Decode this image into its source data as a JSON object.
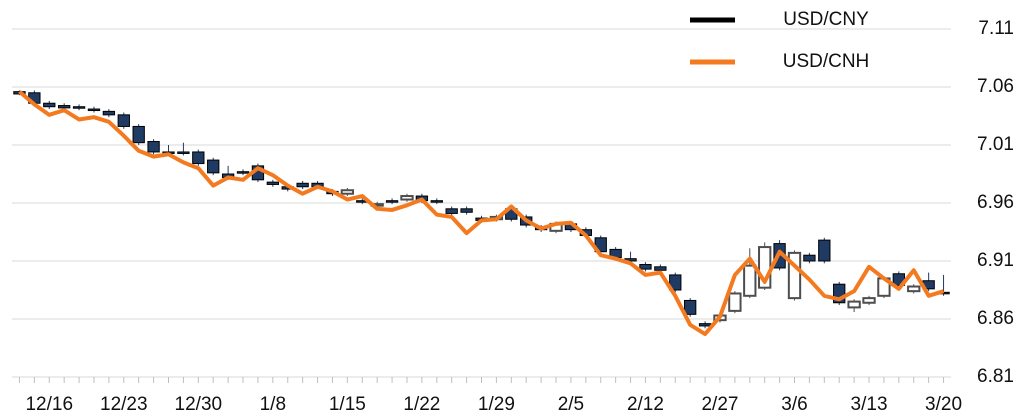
{
  "chart_data": {
    "type": "candlestick",
    "categories": [
      null,
      null,
      "12/16",
      null,
      null,
      null,
      null,
      "12/23",
      null,
      null,
      null,
      null,
      "12/30",
      null,
      null,
      null,
      null,
      "1/8",
      null,
      null,
      null,
      null,
      "1/15",
      null,
      null,
      null,
      null,
      "1/22",
      null,
      null,
      null,
      null,
      "1/29",
      null,
      null,
      null,
      null,
      "2/5",
      null,
      null,
      null,
      null,
      "2/12",
      null,
      null,
      null,
      null,
      "2/27",
      null,
      null,
      null,
      null,
      "3/6",
      null,
      null,
      null,
      null,
      "3/13",
      null,
      null,
      null,
      null,
      "3/20"
    ],
    "series": [
      {
        "name": "USD/CNY",
        "color": "#000000",
        "up_color": "#4d4d4d",
        "down_color": "#1f3b63",
        "open": [
          7.056,
          7.055,
          7.046,
          7.044,
          7.043,
          7.041,
          7.039,
          7.036,
          7.026,
          7.013,
          7.004,
          7.004,
          7.004,
          6.997,
          6.985,
          6.987,
          6.992,
          6.978,
          6.974,
          6.977,
          6.977,
          6.97,
          6.968,
          6.962,
          6.958,
          6.962,
          6.963,
          6.966,
          6.962,
          6.955,
          6.955,
          6.947,
          6.946,
          6.955,
          6.948,
          6.939,
          6.936,
          6.942,
          6.937,
          6.93,
          6.92,
          6.912,
          6.907,
          6.905,
          6.898,
          6.876,
          6.856,
          6.859,
          6.867,
          6.88,
          6.887,
          6.925,
          6.878,
          6.915,
          6.928,
          6.89,
          6.87,
          6.874,
          6.88,
          6.899,
          6.884,
          6.893,
          6.883
        ],
        "high": [
          7.057,
          7.057,
          7.048,
          7.046,
          7.045,
          7.043,
          7.041,
          7.038,
          7.028,
          7.015,
          7.01,
          7.012,
          7.006,
          6.999,
          6.992,
          6.989,
          6.994,
          6.98,
          6.976,
          6.979,
          6.979,
          6.972,
          6.973,
          6.964,
          6.961,
          6.964,
          6.968,
          6.968,
          6.964,
          6.957,
          6.957,
          6.949,
          6.95,
          6.958,
          6.95,
          6.941,
          6.944,
          6.944,
          6.939,
          6.932,
          6.922,
          6.918,
          6.909,
          6.907,
          6.9,
          6.878,
          6.858,
          6.865,
          6.884,
          6.921,
          6.926,
          6.928,
          6.919,
          6.917,
          6.93,
          6.892,
          6.877,
          6.88,
          6.897,
          6.901,
          6.89,
          6.9,
          6.898
        ],
        "low": [
          7.053,
          7.044,
          7.041,
          7.04,
          7.04,
          7.038,
          7.034,
          7.024,
          7.01,
          7.002,
          7.001,
          7.001,
          6.992,
          6.984,
          6.98,
          6.984,
          6.978,
          6.974,
          6.97,
          6.972,
          6.972,
          6.966,
          6.966,
          6.959,
          6.956,
          6.959,
          6.961,
          6.96,
          6.959,
          6.949,
          6.95,
          6.943,
          6.944,
          6.944,
          6.939,
          6.935,
          6.934,
          6.935,
          6.93,
          6.916,
          6.911,
          6.908,
          6.901,
          6.9,
          6.883,
          6.862,
          6.852,
          6.857,
          6.865,
          6.878,
          6.885,
          6.902,
          6.876,
          6.908,
          6.908,
          6.872,
          6.866,
          6.872,
          6.878,
          6.887,
          6.882,
          6.884,
          6.88
        ],
        "close": [
          7.054,
          7.046,
          7.043,
          7.042,
          7.042,
          7.04,
          7.036,
          7.026,
          7.012,
          7.004,
          7.003,
          7.003,
          6.994,
          6.986,
          6.982,
          6.986,
          6.98,
          6.976,
          6.972,
          6.974,
          6.974,
          6.968,
          6.971,
          6.961,
          6.959,
          6.961,
          6.966,
          6.962,
          6.961,
          6.951,
          6.952,
          6.945,
          6.948,
          6.946,
          6.941,
          6.937,
          6.942,
          6.937,
          6.932,
          6.918,
          6.913,
          6.91,
          6.903,
          6.902,
          6.885,
          6.864,
          6.854,
          6.863,
          6.882,
          6.906,
          6.922,
          6.904,
          6.917,
          6.91,
          6.91,
          6.874,
          6.875,
          6.878,
          6.895,
          6.889,
          6.888,
          6.886,
          6.882
        ]
      },
      {
        "name": "USD/CNH",
        "color": "#f47a20",
        "values": [
          7.056,
          7.045,
          7.036,
          7.04,
          7.032,
          7.034,
          7.03,
          7.018,
          7.005,
          7.0,
          7.002,
          6.995,
          6.99,
          6.975,
          6.982,
          6.98,
          6.99,
          6.984,
          6.975,
          6.968,
          6.974,
          6.97,
          6.963,
          6.966,
          6.955,
          6.954,
          6.958,
          6.963,
          6.95,
          6.948,
          6.934,
          6.945,
          6.946,
          6.957,
          6.945,
          6.938,
          6.942,
          6.943,
          6.932,
          6.915,
          6.912,
          6.908,
          6.898,
          6.9,
          6.88,
          6.855,
          6.847,
          6.862,
          6.898,
          6.912,
          6.892,
          6.918,
          6.906,
          6.894,
          6.88,
          6.877,
          6.884,
          6.905,
          6.895,
          6.886,
          6.902,
          6.88,
          6.884
        ]
      }
    ],
    "ylim": [
      6.81,
      7.11
    ],
    "yticks": [
      6.81,
      6.86,
      6.91,
      6.96,
      7.01,
      7.06,
      7.11
    ],
    "grid": true,
    "legend": "top-right"
  }
}
